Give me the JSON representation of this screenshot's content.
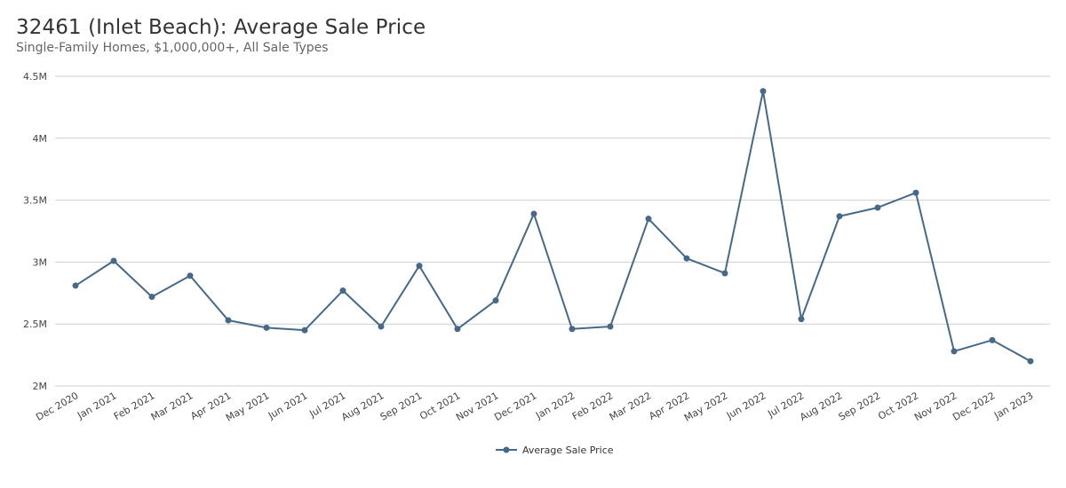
{
  "title": "32461 (Inlet Beach): Average Sale Price",
  "subtitle": "Single-Family Homes, $1,000,000+, All Sale Types",
  "colors": {
    "series": "#46698a",
    "grid": "#cfcfcf"
  },
  "chart_data": {
    "type": "line",
    "title": "32461 (Inlet Beach): Average Sale Price",
    "subtitle": "Single-Family Homes, $1,000,000+, All Sale Types",
    "categories": [
      "Dec 2020",
      "Jan 2021",
      "Feb 2021",
      "Mar 2021",
      "Apr 2021",
      "May 2021",
      "Jun 2021",
      "Jul 2021",
      "Aug 2021",
      "Sep 2021",
      "Oct 2021",
      "Nov 2021",
      "Dec 2021",
      "Jan 2022",
      "Feb 2022",
      "Mar 2022",
      "Apr 2022",
      "May 2022",
      "Jun 2022",
      "Jul 2022",
      "Aug 2022",
      "Sep 2022",
      "Oct 2022",
      "Nov 2022",
      "Dec 2022",
      "Jan 2023"
    ],
    "series": [
      {
        "name": "Average Sale Price",
        "values": [
          2810000,
          3010000,
          2720000,
          2890000,
          2530000,
          2470000,
          2450000,
          2770000,
          2480000,
          2970000,
          2460000,
          2690000,
          3390000,
          2460000,
          2480000,
          3350000,
          3030000,
          2910000,
          4380000,
          2540000,
          3370000,
          3440000,
          3560000,
          2280000,
          2370000,
          2200000
        ]
      }
    ],
    "ylim": [
      2000000,
      4500000
    ],
    "yticks": [
      2000000,
      2500000,
      3000000,
      3500000,
      4000000,
      4500000
    ],
    "ytick_labels": [
      "2M",
      "2.5M",
      "3M",
      "3.5M",
      "4M",
      "4.5M"
    ],
    "grid": true,
    "legend": "bottom-center"
  }
}
